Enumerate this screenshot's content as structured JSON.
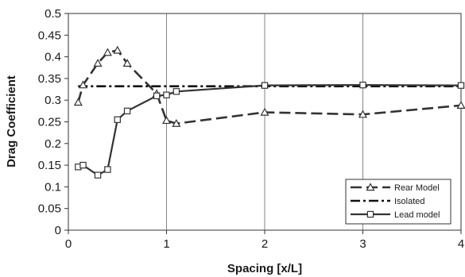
{
  "chart_data": {
    "type": "line",
    "title": "",
    "xlabel": "Spacing [x/L]",
    "ylabel": "Drag Coefficient",
    "xlim": [
      0,
      4
    ],
    "ylim": [
      0,
      0.5
    ],
    "x_ticks": [
      0,
      1,
      2,
      3,
      4
    ],
    "x_tick_labels": [
      "0",
      "1",
      "2",
      "3",
      "4"
    ],
    "y_ticks": [
      0,
      0.05,
      0.1,
      0.15,
      0.2,
      0.25,
      0.3,
      0.35,
      0.4,
      0.45,
      0.5
    ],
    "y_tick_labels": [
      "0",
      "0.05",
      "0.1",
      "0.15",
      "0.2",
      "0.25",
      "0.3",
      "0.35",
      "0.4",
      "0.45",
      "0.5"
    ],
    "grid": "vertical",
    "legend_position": "bottom-right",
    "series": [
      {
        "name": "Rear Model",
        "marker": "triangle",
        "line_style": "long-dash",
        "color": "#333333",
        "x": [
          0.1,
          0.15,
          0.3,
          0.4,
          0.5,
          0.6,
          0.9,
          1.0,
          1.1,
          2.0,
          3.0,
          4.0
        ],
        "y": [
          0.295,
          0.335,
          0.385,
          0.41,
          0.415,
          0.385,
          0.315,
          0.253,
          0.246,
          0.272,
          0.267,
          0.288
        ]
      },
      {
        "name": "Isolated",
        "marker": "none",
        "line_style": "dash-dot",
        "color": "#111111",
        "x": [
          0.1,
          4.0
        ],
        "y": [
          0.332,
          0.332
        ]
      },
      {
        "name": "Lead model",
        "marker": "square",
        "line_style": "solid",
        "color": "#333333",
        "x": [
          0.1,
          0.15,
          0.3,
          0.4,
          0.5,
          0.6,
          0.9,
          1.0,
          1.1,
          2.0,
          3.0,
          4.0
        ],
        "y": [
          0.146,
          0.15,
          0.127,
          0.14,
          0.255,
          0.275,
          0.31,
          0.312,
          0.32,
          0.334,
          0.335,
          0.334
        ]
      }
    ]
  }
}
